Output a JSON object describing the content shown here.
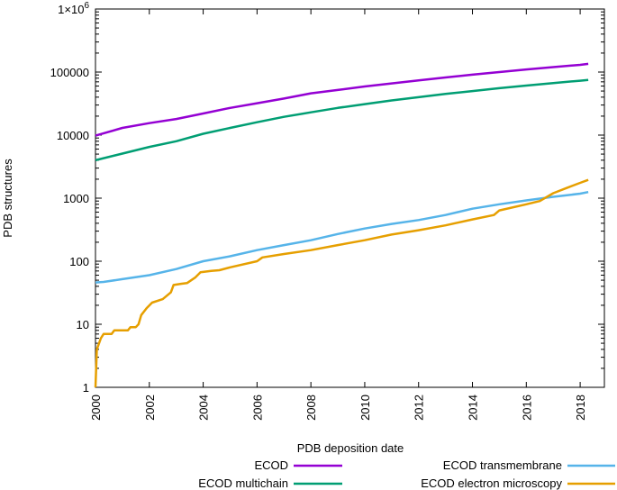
{
  "chart_data": {
    "type": "line",
    "title": "",
    "xlabel": "PDB deposition date",
    "ylabel": "PDB structures",
    "yscale": "log",
    "xlim": [
      2000,
      2018.9
    ],
    "ylim": [
      1,
      1000000
    ],
    "grid": false,
    "legend_position": "bottom",
    "x_ticks": [
      2000,
      2002,
      2004,
      2006,
      2008,
      2010,
      2012,
      2014,
      2016,
      2018
    ],
    "x_tick_labels": [
      "2000",
      "2002",
      "2004",
      "2006",
      "2008",
      "2010",
      "2012",
      "2014",
      "2016",
      "2018"
    ],
    "y_ticks": [
      1,
      10,
      100,
      1000,
      10000,
      100000,
      1000000
    ],
    "y_tick_labels": [
      "1",
      "10",
      "100",
      "1000",
      "10000",
      "100000",
      "1×10^6"
    ],
    "y_top_label_base": "1×10",
    "y_top_label_exp": "6",
    "series": [
      {
        "name": "ECOD",
        "color": "#9400D3",
        "points": [
          [
            2000,
            9800
          ],
          [
            2001,
            13000
          ],
          [
            2002,
            15500
          ],
          [
            2003,
            18000
          ],
          [
            2004,
            22000
          ],
          [
            2005,
            27000
          ],
          [
            2006,
            32000
          ],
          [
            2007,
            38000
          ],
          [
            2008,
            46000
          ],
          [
            2009,
            52000
          ],
          [
            2010,
            59000
          ],
          [
            2011,
            66000
          ],
          [
            2012,
            74000
          ],
          [
            2013,
            82000
          ],
          [
            2014,
            91000
          ],
          [
            2015,
            100000
          ],
          [
            2016,
            110000
          ],
          [
            2017,
            120000
          ],
          [
            2018,
            130000
          ],
          [
            2018.3,
            135000
          ]
        ]
      },
      {
        "name": "ECOD multichain",
        "color": "#009E73",
        "points": [
          [
            2000,
            4000
          ],
          [
            2001,
            5100
          ],
          [
            2002,
            6500
          ],
          [
            2003,
            8000
          ],
          [
            2004,
            10500
          ],
          [
            2005,
            13000
          ],
          [
            2006,
            16000
          ],
          [
            2007,
            19500
          ],
          [
            2008,
            23000
          ],
          [
            2009,
            27000
          ],
          [
            2010,
            31000
          ],
          [
            2011,
            35500
          ],
          [
            2012,
            40000
          ],
          [
            2013,
            45000
          ],
          [
            2014,
            50000
          ],
          [
            2015,
            55500
          ],
          [
            2016,
            61000
          ],
          [
            2017,
            67000
          ],
          [
            2018,
            73000
          ],
          [
            2018.3,
            75000
          ]
        ]
      },
      {
        "name": "ECOD transmembrane",
        "color": "#56B4E9",
        "points": [
          [
            2000,
            46
          ],
          [
            2000.3,
            47
          ],
          [
            2001,
            52
          ],
          [
            2002,
            60
          ],
          [
            2003,
            75
          ],
          [
            2004,
            100
          ],
          [
            2005,
            120
          ],
          [
            2006,
            150
          ],
          [
            2007,
            180
          ],
          [
            2008,
            215
          ],
          [
            2009,
            270
          ],
          [
            2010,
            330
          ],
          [
            2011,
            390
          ],
          [
            2012,
            450
          ],
          [
            2013,
            540
          ],
          [
            2014,
            680
          ],
          [
            2015,
            800
          ],
          [
            2016,
            920
          ],
          [
            2017,
            1050
          ],
          [
            2018,
            1180
          ],
          [
            2018.3,
            1250
          ]
        ]
      },
      {
        "name": "ECOD electron microscopy",
        "color": "#E69F00",
        "points": [
          [
            2000,
            1
          ],
          [
            2000.05,
            4
          ],
          [
            2000.2,
            6
          ],
          [
            2000.3,
            7
          ],
          [
            2000.6,
            7
          ],
          [
            2000.7,
            8
          ],
          [
            2001.2,
            8
          ],
          [
            2001.3,
            9
          ],
          [
            2001.5,
            9
          ],
          [
            2001.6,
            10
          ],
          [
            2001.7,
            14
          ],
          [
            2001.9,
            18
          ],
          [
            2002.1,
            22
          ],
          [
            2002.5,
            25
          ],
          [
            2002.8,
            32
          ],
          [
            2002.9,
            42
          ],
          [
            2003.2,
            44
          ],
          [
            2003.4,
            45
          ],
          [
            2003.7,
            55
          ],
          [
            2003.9,
            67
          ],
          [
            2004.3,
            70
          ],
          [
            2004.6,
            72
          ],
          [
            2005,
            80
          ],
          [
            2006,
            100
          ],
          [
            2006.2,
            115
          ],
          [
            2007,
            130
          ],
          [
            2008,
            150
          ],
          [
            2009,
            180
          ],
          [
            2010,
            215
          ],
          [
            2011,
            265
          ],
          [
            2012,
            310
          ],
          [
            2013,
            370
          ],
          [
            2014,
            460
          ],
          [
            2014.8,
            540
          ],
          [
            2015,
            640
          ],
          [
            2016,
            800
          ],
          [
            2016.5,
            900
          ],
          [
            2017,
            1200
          ],
          [
            2017.5,
            1450
          ],
          [
            2018,
            1750
          ],
          [
            2018.3,
            1950
          ]
        ]
      }
    ]
  }
}
